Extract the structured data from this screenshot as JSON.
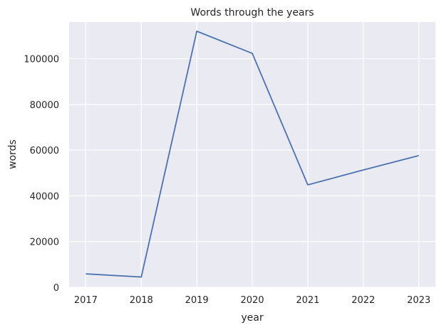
{
  "chart_data": {
    "type": "line",
    "title": "Words through the years",
    "xlabel": "year",
    "ylabel": "words",
    "x": [
      2017,
      2018,
      2019,
      2020,
      2021,
      2022,
      2023
    ],
    "x_tick_labels": [
      "2017",
      "2018",
      "2019",
      "2020",
      "2021",
      "2022",
      "2023"
    ],
    "y_ticks": [
      0,
      20000,
      40000,
      60000,
      80000,
      100000
    ],
    "y_tick_labels": [
      "0",
      "20000",
      "40000",
      "60000",
      "80000",
      "100000"
    ],
    "series": [
      {
        "values": [
          5900,
          4500,
          112000,
          102300,
          44800,
          51300,
          57600
        ]
      }
    ],
    "xlim": [
      2016.7,
      2023.3
    ],
    "ylim": [
      0,
      116000
    ],
    "grid": true,
    "colors": {
      "background": "#eaeaf2",
      "grid": "#ffffff",
      "line": "#4c72b0"
    }
  }
}
